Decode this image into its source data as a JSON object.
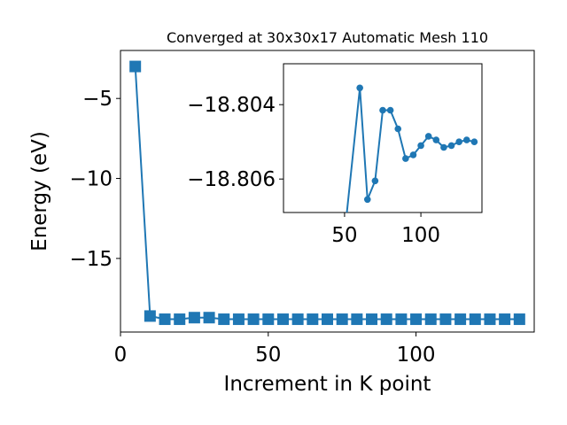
{
  "chart_data": [
    {
      "type": "line",
      "title": "Converged at 30x30x17 Automatic Mesh 110",
      "xlabel": "Increment in K point",
      "ylabel": "Energy (eV)",
      "xlim": [
        0,
        140
      ],
      "ylim": [
        -19.6,
        -2.0
      ],
      "xticks": [
        0,
        50,
        100
      ],
      "yticks": [
        -5,
        -10,
        -15
      ],
      "marker": "square",
      "color": "#1f77b4",
      "grid": false,
      "series": [
        {
          "x": [
            5,
            10,
            15,
            20,
            25,
            30,
            35,
            40,
            45,
            50,
            55,
            60,
            65,
            70,
            75,
            80,
            85,
            90,
            95,
            100,
            105,
            110,
            115,
            120,
            125,
            130,
            135
          ],
          "y": [
            -3.0,
            -18.6,
            -18.8,
            -18.8,
            -18.7,
            -18.7,
            -18.8,
            -18.8,
            -18.8,
            -18.8,
            -18.8,
            -18.8,
            -18.8,
            -18.8,
            -18.8,
            -18.8,
            -18.8,
            -18.8,
            -18.8,
            -18.8,
            -18.8,
            -18.8,
            -18.8,
            -18.8,
            -18.8,
            -18.8,
            -18.8
          ]
        }
      ]
    },
    {
      "type": "line",
      "title": "",
      "xlim": [
        10,
        140
      ],
      "ylim": [
        -18.8069,
        -18.8029
      ],
      "xticks": [
        50,
        100
      ],
      "yticks": [
        -18.806,
        -18.804
      ],
      "marker": "circle",
      "color": "#1f77b4",
      "grid": false,
      "series": [
        {
          "x": [
            50,
            60,
            65,
            70,
            75,
            80,
            85,
            90,
            95,
            100,
            105,
            110,
            115,
            120,
            125,
            130,
            135
          ],
          "y": [
            -18.8075,
            -18.80355,
            -18.80655,
            -18.80605,
            -18.80415,
            -18.80415,
            -18.80465,
            -18.80545,
            -18.80535,
            -18.8051,
            -18.80485,
            -18.80495,
            -18.80515,
            -18.8051,
            -18.805,
            -18.80495,
            -18.805
          ]
        }
      ]
    }
  ]
}
